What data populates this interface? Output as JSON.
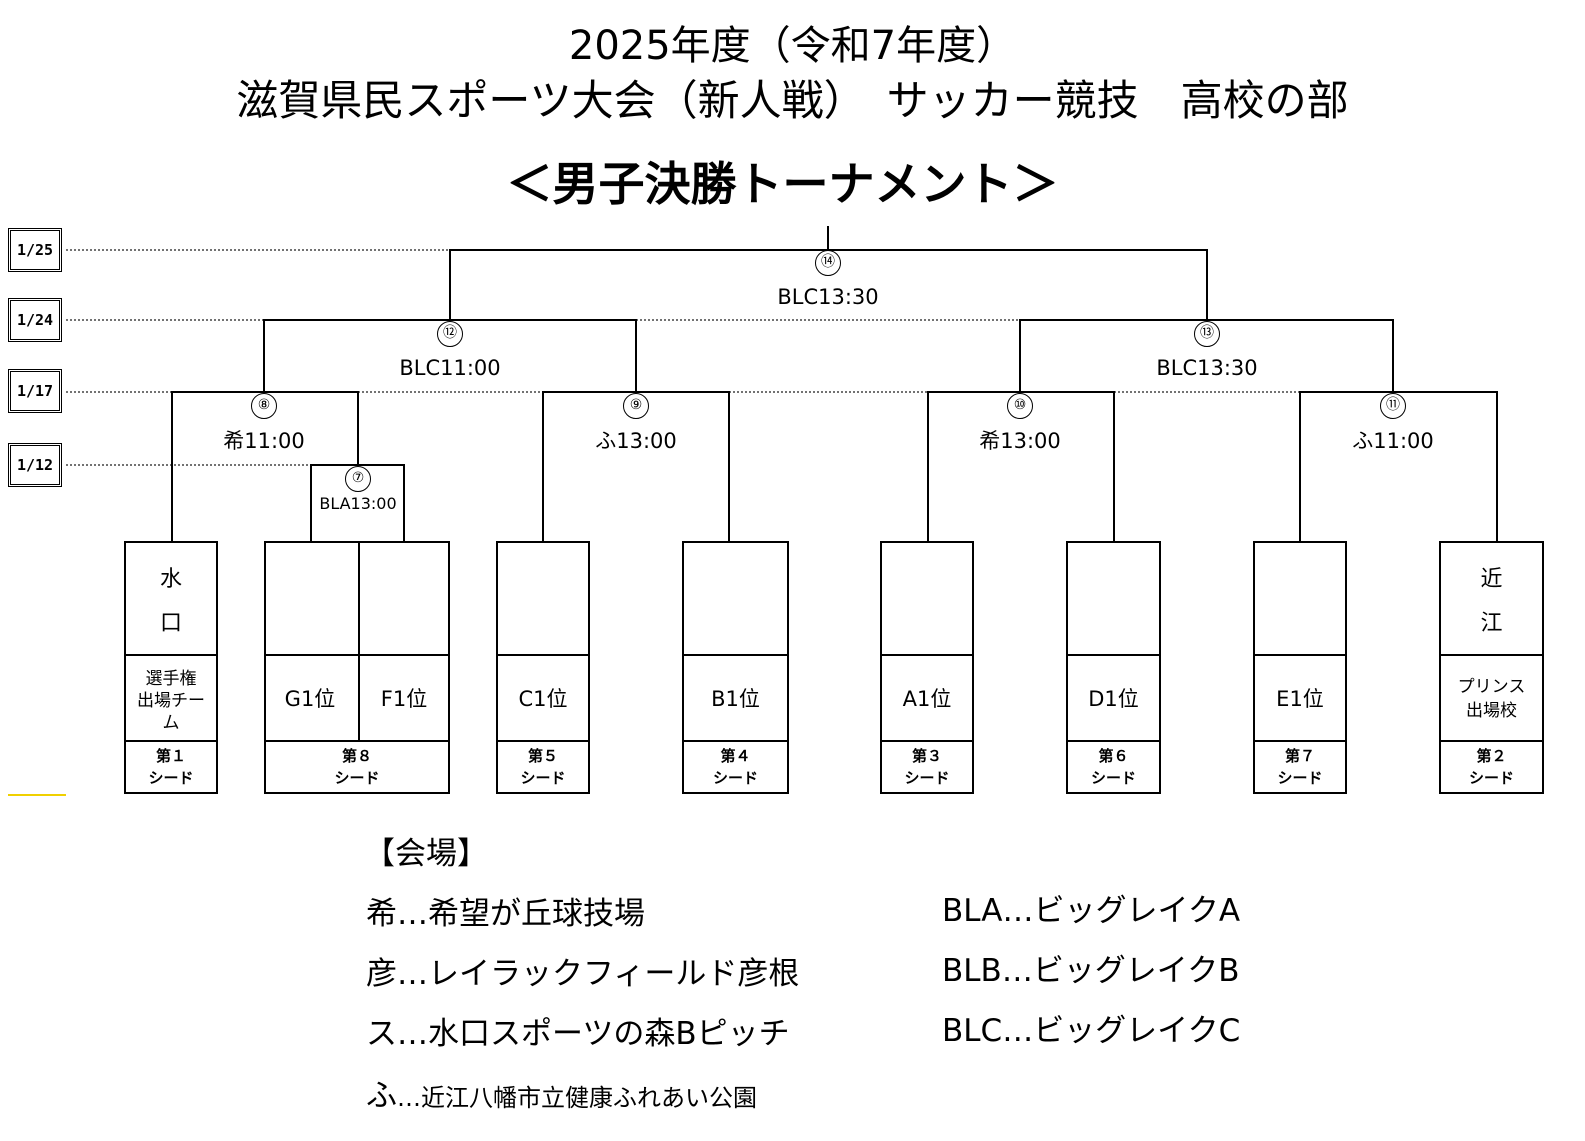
{
  "title": {
    "line1": "2025年度（令和7年度）",
    "line2": "滋賀県民スポーツ大会（新人戦）　サッカー競技　高校の部",
    "line3": "＜男子決勝トーナメント＞"
  },
  "dates": [
    "1/25",
    "1/24",
    "1/17",
    "1/12"
  ],
  "matches": {
    "m14": {
      "num": "⑭",
      "info": "BLC13:30"
    },
    "m12": {
      "num": "⑫",
      "info": "BLC11:00"
    },
    "m13": {
      "num": "⑬",
      "info": "BLC13:30"
    },
    "m8": {
      "num": "⑧",
      "info": "希11:00"
    },
    "m9": {
      "num": "⑨",
      "info": "ふ13:00"
    },
    "m10": {
      "num": "⑩",
      "info": "希13:00"
    },
    "m11": {
      "num": "⑪",
      "info": "ふ11:00"
    },
    "m7": {
      "num": "⑦",
      "info": "BLA13:00"
    }
  },
  "teams": {
    "t1": {
      "name_a": "水",
      "name_b": "口",
      "note_a": "選手権",
      "note_b": "出場チー",
      "note_c": "ム",
      "seed_a": "第１",
      "seed_b": "シード"
    },
    "t8": {
      "left": "G1位",
      "right": "F1位",
      "seed_a": "第８",
      "seed_b": "シード"
    },
    "t5": {
      "pos": "C1位",
      "seed_a": "第５",
      "seed_b": "シード"
    },
    "t4": {
      "pos": "B1位",
      "seed_a": "第４",
      "seed_b": "シード"
    },
    "t3": {
      "pos": "A1位",
      "seed_a": "第３",
      "seed_b": "シード"
    },
    "t6": {
      "pos": "D1位",
      "seed_a": "第６",
      "seed_b": "シード"
    },
    "t7": {
      "pos": "E1位",
      "seed_a": "第７",
      "seed_b": "シード"
    },
    "t2": {
      "name_a": "近",
      "name_b": "江",
      "note_a": "プリンス",
      "note_b": "出場校",
      "seed_a": "第２",
      "seed_b": "シード"
    }
  },
  "venues": {
    "heading": "【会場】",
    "left": [
      {
        "abbr": "希",
        "sep": "…",
        "name": "希望が丘球技場"
      },
      {
        "abbr": "彦",
        "sep": "…",
        "name": "レイラックフィールド彦根"
      },
      {
        "abbr": "ス",
        "sep": "…",
        "name": "水口スポーツの森Bピッチ"
      },
      {
        "abbr": "ふ",
        "sep": "…",
        "name": "近江八幡市立健康ふれあい公園"
      }
    ],
    "right": [
      {
        "abbr": "BLA",
        "sep": "…",
        "name": "ビッグレイクA"
      },
      {
        "abbr": "BLB",
        "sep": "…",
        "name": "ビッグレイクB"
      },
      {
        "abbr": "BLC",
        "sep": "…",
        "name": "ビッグレイクC"
      }
    ]
  }
}
